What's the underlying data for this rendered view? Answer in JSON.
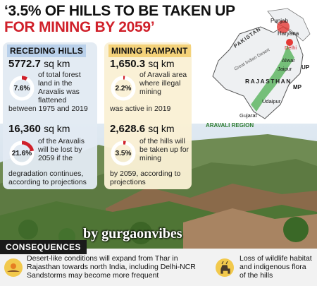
{
  "headline": {
    "line1": "‘3.5% OF HILLS TO BE TAKEN UP",
    "line2": "FOR MINING BY 2059’"
  },
  "receding": {
    "title": "RECEDING HILLS",
    "stat1": {
      "value": "5772.7",
      "unit": "sq km",
      "percent": "7.6%",
      "fraction": 0.076,
      "desc1": "of total forest land in the Aravalis was flattened",
      "desc2": "between 1975 and 2019"
    },
    "stat2": {
      "value": "16,360",
      "unit": "sq km",
      "percent": "21.6%",
      "fraction": 0.216,
      "desc1": "of the Aravalis will be lost by 2059 if the",
      "desc2": "degradation continues, according to projections"
    }
  },
  "mining": {
    "title": "MINING RAMPANT",
    "stat1": {
      "value": "1,650.3",
      "unit": "sq km",
      "percent": "2.2%",
      "fraction": 0.022,
      "desc1": "of Aravali area where illegal mining",
      "desc2": "was active in 2019"
    },
    "stat2": {
      "value": "2,628.6",
      "unit": "sq km",
      "percent": "3.5%",
      "fraction": 0.035,
      "desc1": "of the hills will be taken up for mining",
      "desc2": "by 2059, according to projections"
    }
  },
  "map": {
    "labels": {
      "punjab": "Punjab",
      "haryana": "Haryana",
      "delhi": "Delhi",
      "pakistan": "PAKISTAN",
      "desert": "Great Indian Desert",
      "alwar": "Alwar",
      "jaipur": "Jaipur",
      "up": "UP",
      "rajasthan": "RAJASTHAN",
      "mp": "MP",
      "udaipur": "Udaipur",
      "gujarat": "Gujarat",
      "region": "ARAVALI REGION"
    },
    "colors": {
      "region": "#4caf50",
      "delhi": "#e53935",
      "land": "#eef0f2"
    }
  },
  "watermark": "by gurgaonvibes",
  "consequences": {
    "label": "CONSEQUENCES",
    "items": [
      {
        "icon": "sun-desert-icon",
        "line1": "Desert-like conditions will expand from Thar in",
        "line2": "Rajasthan towards north India, including Delhi-NCR",
        "line3": "Sandstorms may become more frequent"
      },
      {
        "icon": "deer-icon",
        "line1": "Loss of wildlife habitat",
        "line2": "and indigenous flora",
        "line3": "of the hills"
      }
    ]
  },
  "colors": {
    "accent_red": "#d0202a",
    "donut_track": "#ffffff",
    "donut_fill": "#d0202a"
  }
}
